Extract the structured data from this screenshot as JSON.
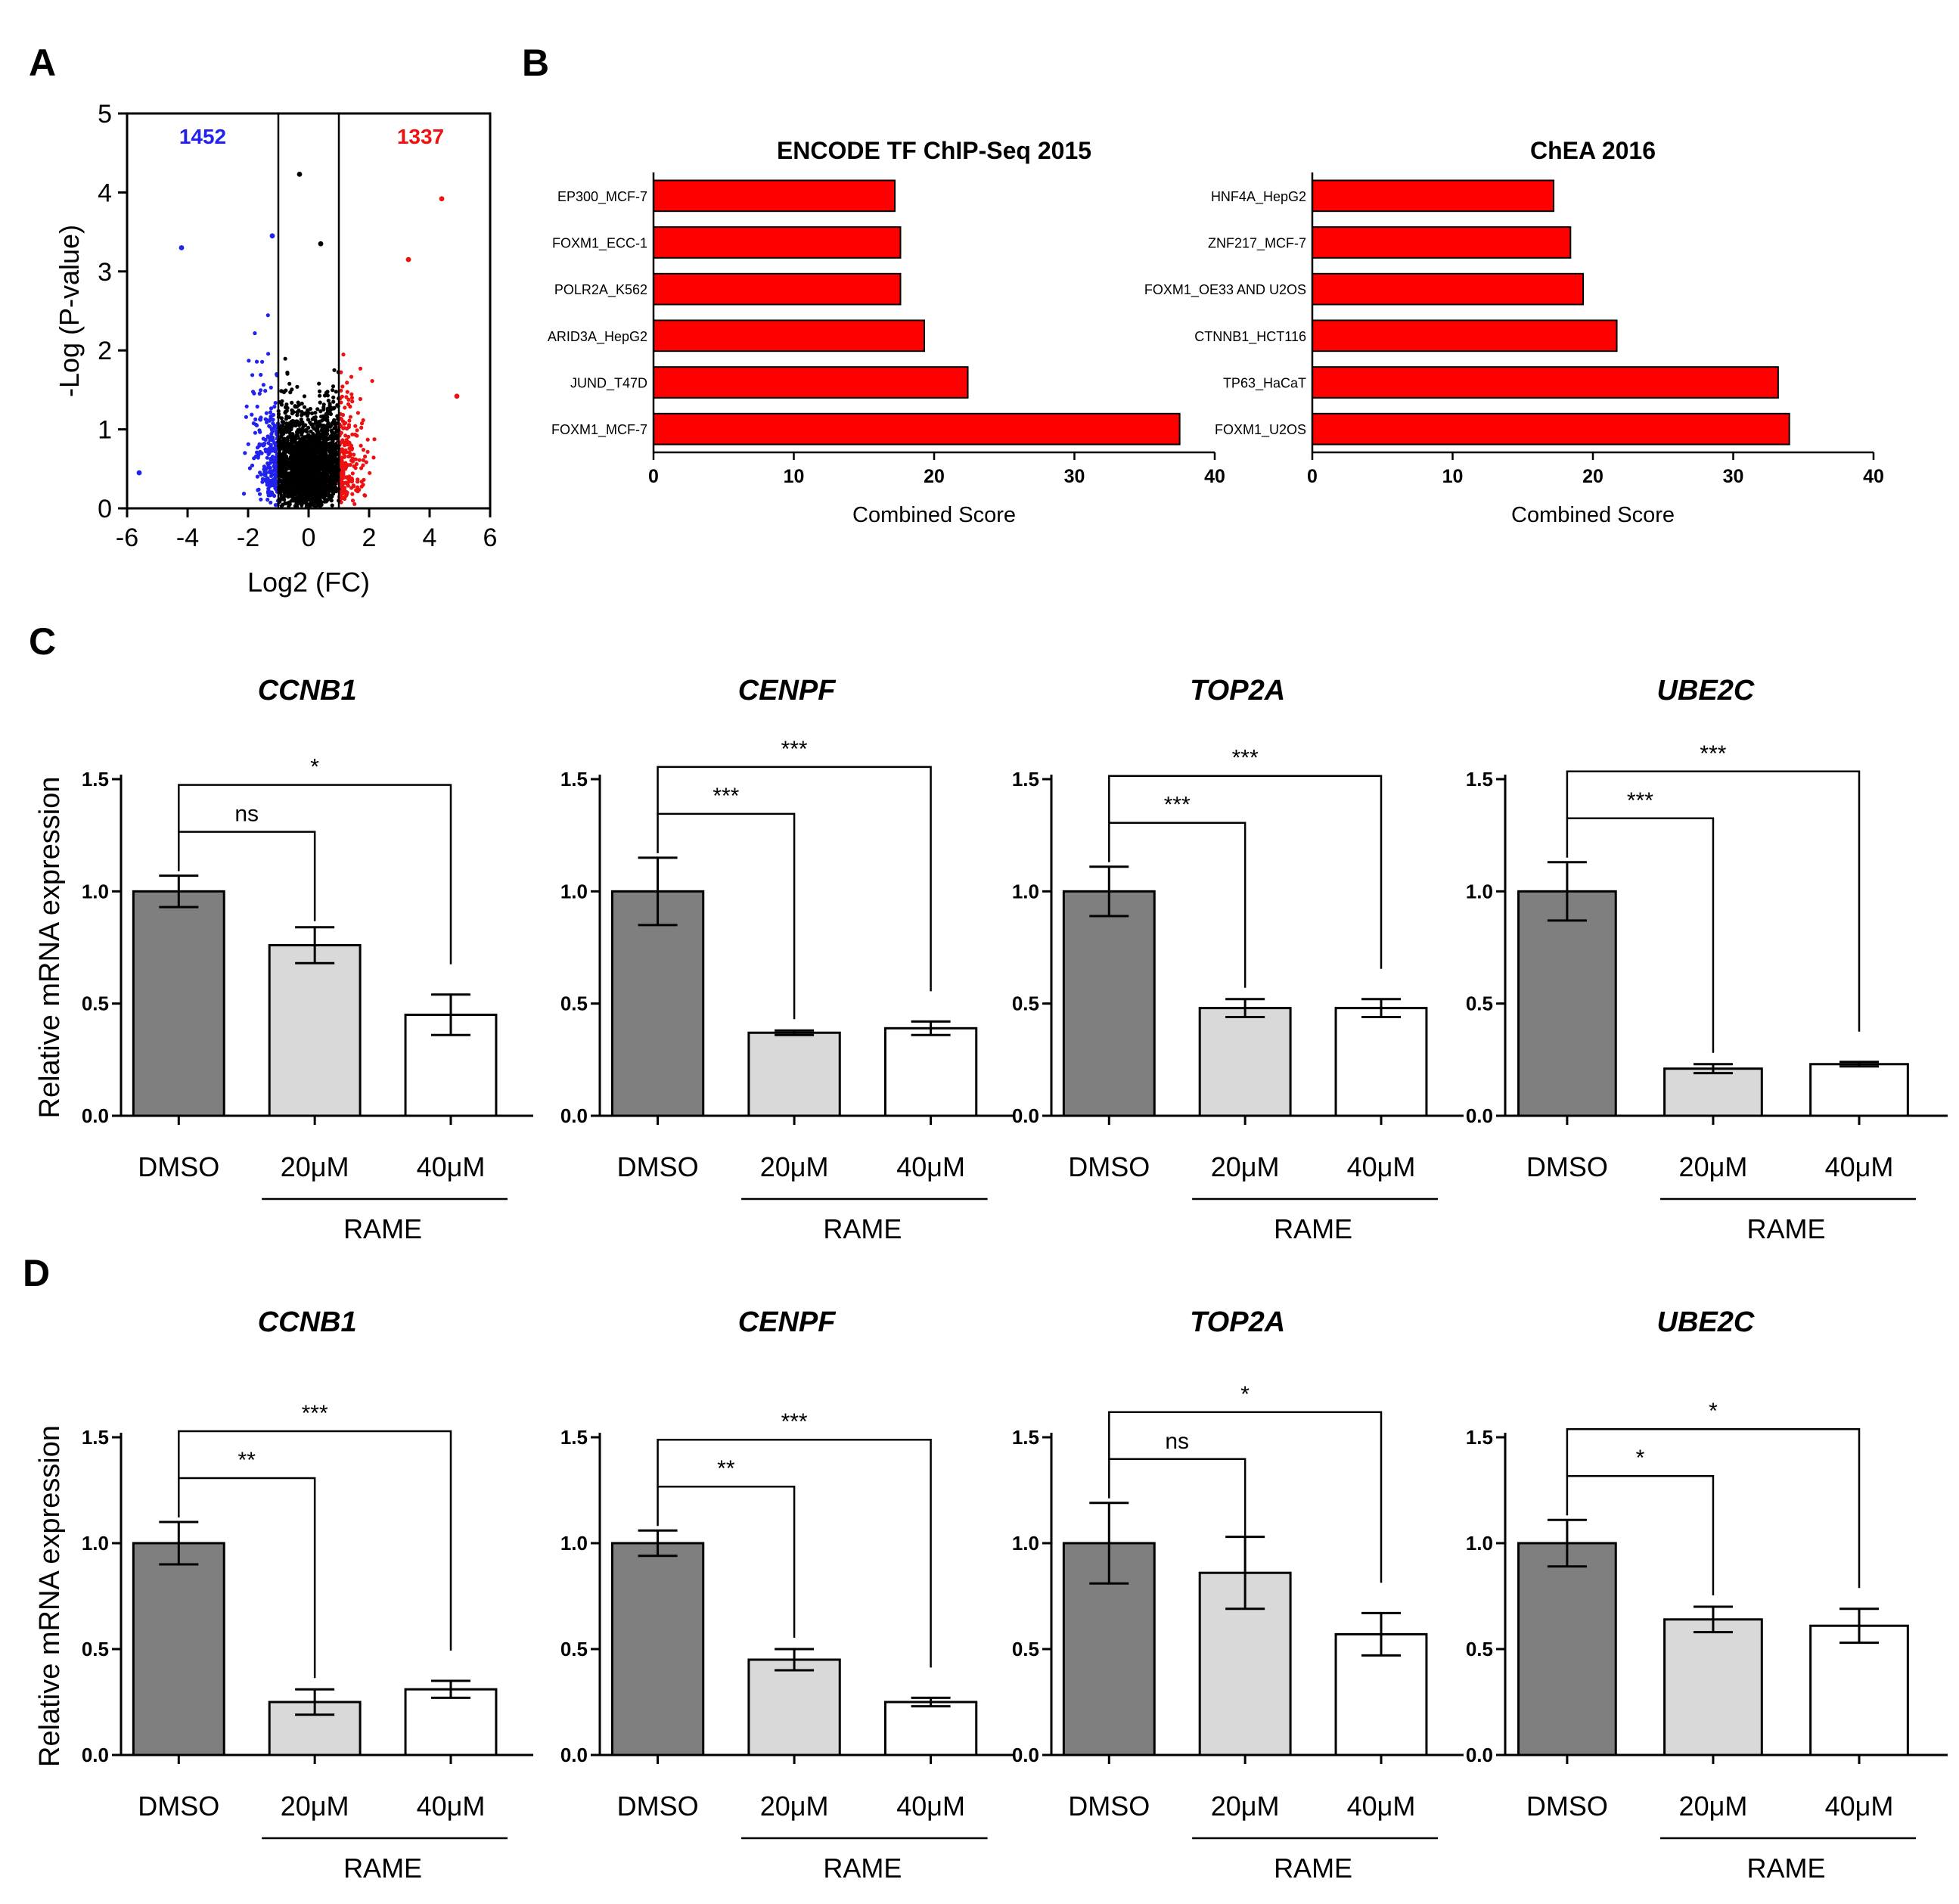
{
  "panel_letters": {
    "a": "A",
    "b": "B",
    "c": "C",
    "d": "D"
  },
  "chart_data": [
    {
      "id": "volcano",
      "type": "scatter",
      "title": "",
      "xlabel": "Log2 (FC)",
      "ylabel": "-Log (P-value)",
      "xlim": [
        -6,
        6
      ],
      "ylim": [
        0,
        5
      ],
      "xticks": [
        "-6",
        "-4",
        "-2",
        "0",
        "2",
        "4",
        "6"
      ],
      "yticks": [
        "0",
        "1",
        "2",
        "3",
        "4",
        "5"
      ],
      "thresholds": [
        -1,
        1
      ],
      "down_count": "1452",
      "up_count": "1337",
      "colors": {
        "down": "#2222ee",
        "up": "#ee1111",
        "ns": "#000000"
      }
    },
    {
      "id": "encode",
      "type": "bar",
      "orientation": "horizontal",
      "title": "ENCODE  TF ChIP-Seq 2015",
      "xlabel": "Combined Score",
      "xlim": [
        0,
        40
      ],
      "xticks": [
        "0",
        "10",
        "20",
        "30",
        "40"
      ],
      "categories": [
        "EP300_MCF-7",
        "FOXM1_ECC-1",
        "POLR2A_K562",
        "ARID3A_HepG2",
        "JUND_T47D",
        "FOXM1_MCF-7"
      ],
      "values": [
        17.2,
        17.6,
        17.6,
        19.3,
        22.4,
        37.5
      ],
      "color": "#ff0000"
    },
    {
      "id": "chea",
      "type": "bar",
      "orientation": "horizontal",
      "title": "ChEA 2016",
      "xlabel": "Combined Score",
      "xlim": [
        0,
        40
      ],
      "xticks": [
        "0",
        "10",
        "20",
        "30",
        "40"
      ],
      "categories": [
        "HNF4A_HepG2",
        "ZNF217_MCF-7",
        "FOXM1_OE33 AND U2OS",
        "CTNNB1_HCT116",
        "TP63_HaCaT",
        "FOXM1_U2OS"
      ],
      "values": [
        17.2,
        18.4,
        19.3,
        21.7,
        33.2,
        34.0
      ],
      "color": "#ff0000"
    },
    {
      "id": "c_ccnb1",
      "type": "bar",
      "title": "CCNB1",
      "ylabel": "Relative  mRNA  expression",
      "ylim": [
        0,
        1.5
      ],
      "yticks": [
        "0.0",
        "0.5",
        "1.0",
        "1.5"
      ],
      "categories": [
        "DMSO",
        "20μM",
        "40μM"
      ],
      "group_label": "RAME",
      "values": [
        1.0,
        0.76,
        0.45
      ],
      "errors": [
        0.07,
        0.08,
        0.09
      ],
      "comparisons": [
        "ns",
        "*"
      ]
    },
    {
      "id": "c_cenpf",
      "type": "bar",
      "title": "CENPF",
      "ylabel": "",
      "ylim": [
        0,
        1.5
      ],
      "yticks": [
        "0.0",
        "0.5",
        "1.0",
        "1.5"
      ],
      "categories": [
        "DMSO",
        "20μM",
        "40μM"
      ],
      "group_label": "RAME",
      "values": [
        1.0,
        0.37,
        0.39
      ],
      "errors": [
        0.15,
        0.01,
        0.03
      ],
      "comparisons": [
        "***",
        "***"
      ]
    },
    {
      "id": "c_top2a",
      "type": "bar",
      "title": "TOP2A",
      "ylabel": "",
      "ylim": [
        0,
        1.5
      ],
      "yticks": [
        "0.0",
        "0.5",
        "1.0",
        "1.5"
      ],
      "categories": [
        "DMSO",
        "20μM",
        "40μM"
      ],
      "group_label": "RAME",
      "values": [
        1.0,
        0.48,
        0.48
      ],
      "errors": [
        0.11,
        0.04,
        0.04
      ],
      "comparisons": [
        "***",
        "***"
      ]
    },
    {
      "id": "c_ube2c",
      "type": "bar",
      "title": "UBE2C",
      "ylabel": "",
      "ylim": [
        0,
        1.5
      ],
      "yticks": [
        "0.0",
        "0.5",
        "1.0",
        "1.5"
      ],
      "categories": [
        "DMSO",
        "20μM",
        "40μM"
      ],
      "group_label": "RAME",
      "values": [
        1.0,
        0.21,
        0.23
      ],
      "errors": [
        0.13,
        0.02,
        0.01
      ],
      "comparisons": [
        "***",
        "***"
      ]
    },
    {
      "id": "d_ccnb1",
      "type": "bar",
      "title": "CCNB1",
      "ylabel": "Relative  mRNA  expression",
      "ylim": [
        0,
        1.5
      ],
      "yticks": [
        "0.0",
        "0.5",
        "1.0",
        "1.5"
      ],
      "categories": [
        "DMSO",
        "20μM",
        "40μM"
      ],
      "group_label": "RAME",
      "values": [
        1.0,
        0.25,
        0.31
      ],
      "errors": [
        0.1,
        0.06,
        0.04
      ],
      "comparisons": [
        "**",
        "***"
      ]
    },
    {
      "id": "d_cenpf",
      "type": "bar",
      "title": "CENPF",
      "ylabel": "",
      "ylim": [
        0,
        1.5
      ],
      "yticks": [
        "0.0",
        "0.5",
        "1.0",
        "1.5"
      ],
      "categories": [
        "DMSO",
        "20μM",
        "40μM"
      ],
      "group_label": "RAME",
      "values": [
        1.0,
        0.45,
        0.25
      ],
      "errors": [
        0.06,
        0.05,
        0.02
      ],
      "comparisons": [
        "**",
        "***"
      ]
    },
    {
      "id": "d_top2a",
      "type": "bar",
      "title": "TOP2A",
      "ylabel": "",
      "ylim": [
        0,
        1.5
      ],
      "yticks": [
        "0.0",
        "0.5",
        "1.0",
        "1.5"
      ],
      "categories": [
        "DMSO",
        "20μM",
        "40μM"
      ],
      "group_label": "RAME",
      "values": [
        1.0,
        0.86,
        0.57
      ],
      "errors": [
        0.19,
        0.17,
        0.1
      ],
      "comparisons": [
        "ns",
        "*"
      ]
    },
    {
      "id": "d_ube2c",
      "type": "bar",
      "title": "UBE2C",
      "ylabel": "",
      "ylim": [
        0,
        1.5
      ],
      "yticks": [
        "0.0",
        "0.5",
        "1.0",
        "1.5"
      ],
      "categories": [
        "DMSO",
        "20μM",
        "40μM"
      ],
      "group_label": "RAME",
      "values": [
        1.0,
        0.64,
        0.61
      ],
      "errors": [
        0.11,
        0.06,
        0.08
      ],
      "comparisons": [
        "*",
        "*"
      ]
    }
  ],
  "bar_fill_colors": [
    "#7f7f7f",
    "#d9d9d9",
    "#ffffff"
  ]
}
